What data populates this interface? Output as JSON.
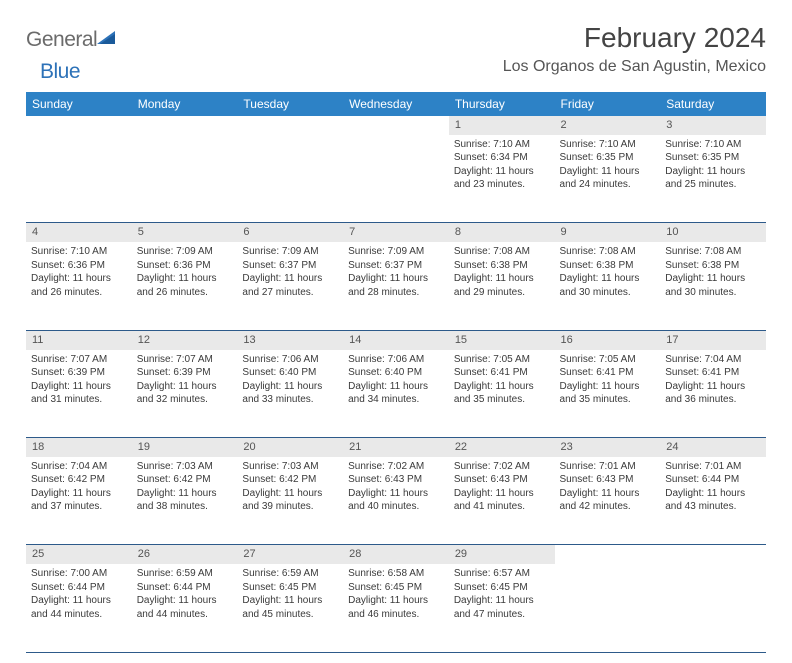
{
  "logo": {
    "text1": "General",
    "text2": "Blue"
  },
  "title": "February 2024",
  "location": "Los Organos de San Agustin, Mexico",
  "colors": {
    "header_bg": "#2d82c6",
    "header_text": "#ffffff",
    "daynum_bg": "#e9e9e9",
    "row_border": "#2d5a8a",
    "logo_gray": "#6b6b6b",
    "logo_blue": "#2d72b8"
  },
  "weekdays": [
    "Sunday",
    "Monday",
    "Tuesday",
    "Wednesday",
    "Thursday",
    "Friday",
    "Saturday"
  ],
  "weeks": [
    {
      "nums": [
        "",
        "",
        "",
        "",
        "1",
        "2",
        "3"
      ],
      "cells": [
        null,
        null,
        null,
        null,
        {
          "sunrise": "7:10 AM",
          "sunset": "6:34 PM",
          "daylight": "11 hours and 23 minutes."
        },
        {
          "sunrise": "7:10 AM",
          "sunset": "6:35 PM",
          "daylight": "11 hours and 24 minutes."
        },
        {
          "sunrise": "7:10 AM",
          "sunset": "6:35 PM",
          "daylight": "11 hours and 25 minutes."
        }
      ]
    },
    {
      "nums": [
        "4",
        "5",
        "6",
        "7",
        "8",
        "9",
        "10"
      ],
      "cells": [
        {
          "sunrise": "7:10 AM",
          "sunset": "6:36 PM",
          "daylight": "11 hours and 26 minutes."
        },
        {
          "sunrise": "7:09 AM",
          "sunset": "6:36 PM",
          "daylight": "11 hours and 26 minutes."
        },
        {
          "sunrise": "7:09 AM",
          "sunset": "6:37 PM",
          "daylight": "11 hours and 27 minutes."
        },
        {
          "sunrise": "7:09 AM",
          "sunset": "6:37 PM",
          "daylight": "11 hours and 28 minutes."
        },
        {
          "sunrise": "7:08 AM",
          "sunset": "6:38 PM",
          "daylight": "11 hours and 29 minutes."
        },
        {
          "sunrise": "7:08 AM",
          "sunset": "6:38 PM",
          "daylight": "11 hours and 30 minutes."
        },
        {
          "sunrise": "7:08 AM",
          "sunset": "6:38 PM",
          "daylight": "11 hours and 30 minutes."
        }
      ]
    },
    {
      "nums": [
        "11",
        "12",
        "13",
        "14",
        "15",
        "16",
        "17"
      ],
      "cells": [
        {
          "sunrise": "7:07 AM",
          "sunset": "6:39 PM",
          "daylight": "11 hours and 31 minutes."
        },
        {
          "sunrise": "7:07 AM",
          "sunset": "6:39 PM",
          "daylight": "11 hours and 32 minutes."
        },
        {
          "sunrise": "7:06 AM",
          "sunset": "6:40 PM",
          "daylight": "11 hours and 33 minutes."
        },
        {
          "sunrise": "7:06 AM",
          "sunset": "6:40 PM",
          "daylight": "11 hours and 34 minutes."
        },
        {
          "sunrise": "7:05 AM",
          "sunset": "6:41 PM",
          "daylight": "11 hours and 35 minutes."
        },
        {
          "sunrise": "7:05 AM",
          "sunset": "6:41 PM",
          "daylight": "11 hours and 35 minutes."
        },
        {
          "sunrise": "7:04 AM",
          "sunset": "6:41 PM",
          "daylight": "11 hours and 36 minutes."
        }
      ]
    },
    {
      "nums": [
        "18",
        "19",
        "20",
        "21",
        "22",
        "23",
        "24"
      ],
      "cells": [
        {
          "sunrise": "7:04 AM",
          "sunset": "6:42 PM",
          "daylight": "11 hours and 37 minutes."
        },
        {
          "sunrise": "7:03 AM",
          "sunset": "6:42 PM",
          "daylight": "11 hours and 38 minutes."
        },
        {
          "sunrise": "7:03 AM",
          "sunset": "6:42 PM",
          "daylight": "11 hours and 39 minutes."
        },
        {
          "sunrise": "7:02 AM",
          "sunset": "6:43 PM",
          "daylight": "11 hours and 40 minutes."
        },
        {
          "sunrise": "7:02 AM",
          "sunset": "6:43 PM",
          "daylight": "11 hours and 41 minutes."
        },
        {
          "sunrise": "7:01 AM",
          "sunset": "6:43 PM",
          "daylight": "11 hours and 42 minutes."
        },
        {
          "sunrise": "7:01 AM",
          "sunset": "6:44 PM",
          "daylight": "11 hours and 43 minutes."
        }
      ]
    },
    {
      "nums": [
        "25",
        "26",
        "27",
        "28",
        "29",
        "",
        ""
      ],
      "cells": [
        {
          "sunrise": "7:00 AM",
          "sunset": "6:44 PM",
          "daylight": "11 hours and 44 minutes."
        },
        {
          "sunrise": "6:59 AM",
          "sunset": "6:44 PM",
          "daylight": "11 hours and 44 minutes."
        },
        {
          "sunrise": "6:59 AM",
          "sunset": "6:45 PM",
          "daylight": "11 hours and 45 minutes."
        },
        {
          "sunrise": "6:58 AM",
          "sunset": "6:45 PM",
          "daylight": "11 hours and 46 minutes."
        },
        {
          "sunrise": "6:57 AM",
          "sunset": "6:45 PM",
          "daylight": "11 hours and 47 minutes."
        },
        null,
        null
      ]
    }
  ],
  "labels": {
    "sunrise": "Sunrise: ",
    "sunset": "Sunset: ",
    "daylight": "Daylight: "
  }
}
